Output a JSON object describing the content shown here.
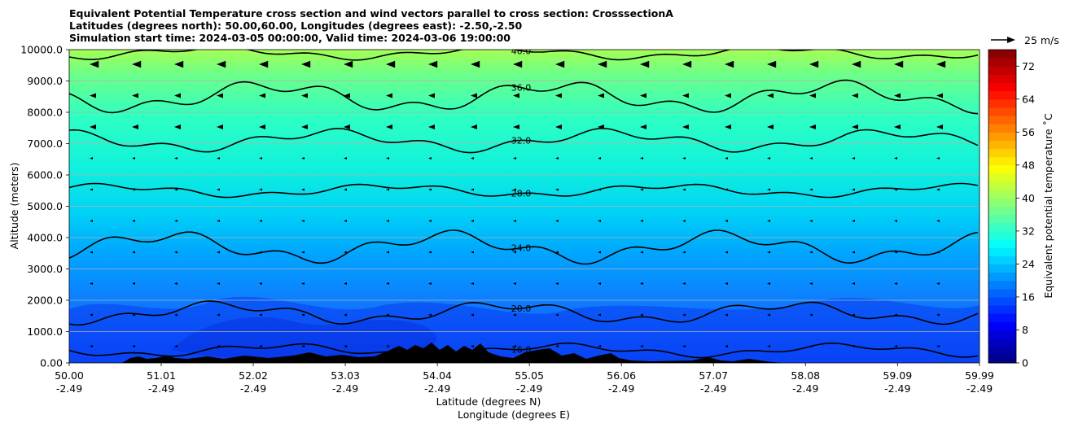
{
  "title_lines": [
    "Equivalent Potential Temperature cross section and wind vectors parallel to cross section: CrosssectionA",
    "Latitudes (degrees north): 50.00,60.00, Longitudes (degrees east): -2.50,-2.50",
    "Simulation start time: 2024-03-05 00:00:00, Valid time: 2024-03-06 19:00:00"
  ],
  "chart_data": {
    "type": "heatmap",
    "subtype": "filled-contour cross section with wind vectors",
    "xlabel": "Latitude (degrees N)",
    "xlabel2": "Longitude (degrees E)",
    "ylabel": "Altitude (meters)",
    "x_ticks": [
      {
        "lat": "50.00",
        "lon": "-2.49"
      },
      {
        "lat": "51.01",
        "lon": "-2.49"
      },
      {
        "lat": "52.02",
        "lon": "-2.49"
      },
      {
        "lat": "53.03",
        "lon": "-2.49"
      },
      {
        "lat": "54.04",
        "lon": "-2.49"
      },
      {
        "lat": "55.05",
        "lon": "-2.49"
      },
      {
        "lat": "56.06",
        "lon": "-2.49"
      },
      {
        "lat": "57.07",
        "lon": "-2.49"
      },
      {
        "lat": "58.08",
        "lon": "-2.49"
      },
      {
        "lat": "59.09",
        "lon": "-2.49"
      },
      {
        "lat": "59.99",
        "lon": "-2.49"
      }
    ],
    "x_range": [
      50.0,
      59.99
    ],
    "y_ticks": [
      "0.00",
      "1000.0",
      "2000.0",
      "3000.0",
      "4000.0",
      "5000.0",
      "6000.0",
      "7000.0",
      "8000.0",
      "9000.0",
      "10000.0"
    ],
    "y_range": [
      0,
      10000
    ],
    "grid": "horizontal",
    "colorbar": {
      "label": "Equivalent potential temperature ˚C",
      "ticks": [
        "0",
        "8",
        "16",
        "24",
        "32",
        "40",
        "48",
        "56",
        "64",
        "72"
      ],
      "range": [
        0,
        76
      ],
      "colormap": "jet"
    },
    "wind_key": "25 m/s",
    "contour_levels": [
      "16.0",
      "20.0",
      "24.0",
      "28.0",
      "32.0",
      "36.0",
      "40.0"
    ],
    "layers": [
      {
        "label": "16.0",
        "approx_altitude_m": 400
      },
      {
        "label": "20.0",
        "approx_altitude_m": 1600
      },
      {
        "label": "24.0",
        "approx_altitude_m": 3700
      },
      {
        "label": "28.0",
        "approx_altitude_m": 5500
      },
      {
        "label": "32.0",
        "approx_altitude_m": 7100
      },
      {
        "label": "36.0",
        "approx_altitude_m": 8500
      },
      {
        "label": "40.0",
        "approx_altitude_m": 9900
      }
    ],
    "colors": {
      "terrain": "#000000",
      "contour": "#000000",
      "grid": "#b0b0b0"
    }
  }
}
